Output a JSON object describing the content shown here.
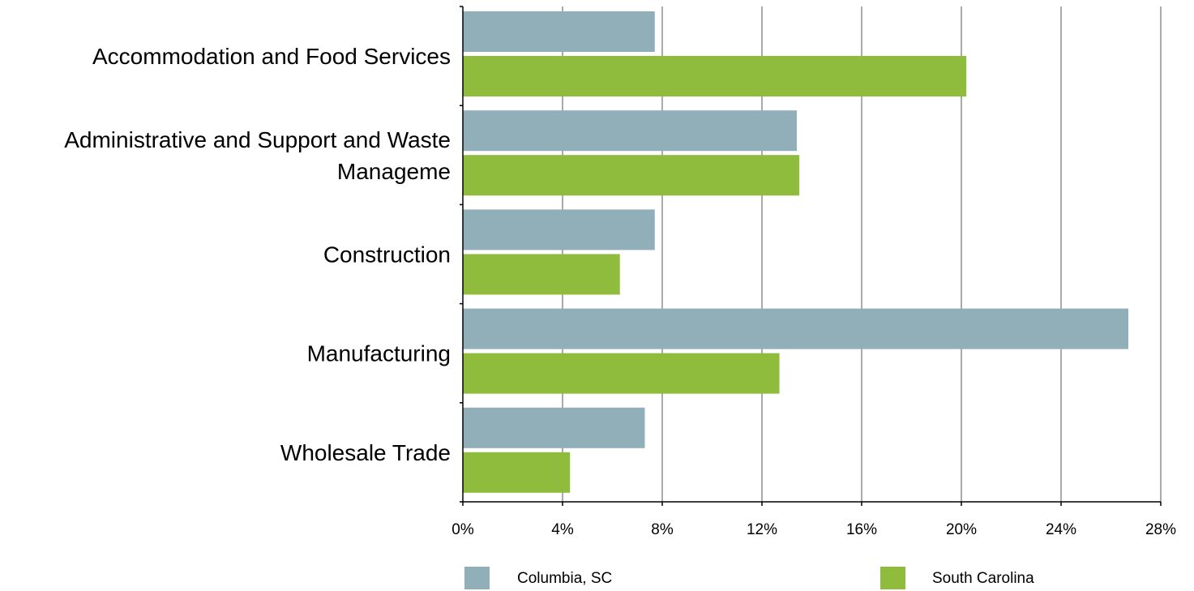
{
  "chart_data": {
    "type": "bar",
    "orientation": "horizontal",
    "categories": [
      [
        "Accommodation and Food Services"
      ],
      [
        "Administrative and Support and Waste",
        "Manageme"
      ],
      [
        "Construction"
      ],
      [
        "Manufacturing"
      ],
      [
        "Wholesale Trade"
      ]
    ],
    "series": [
      {
        "name": "Columbia, SC",
        "color": "#91afb8",
        "values": [
          7.7,
          13.4,
          7.7,
          26.7,
          7.3
        ]
      },
      {
        "name": "South Carolina",
        "color": "#8fbc3c",
        "values": [
          20.2,
          13.5,
          6.3,
          12.7,
          4.3
        ]
      }
    ],
    "xlim": [
      0,
      28
    ],
    "xticks": [
      0,
      4,
      8,
      12,
      16,
      20,
      24,
      28
    ],
    "tick_suffix": "%",
    "grid": "vertical",
    "legend_position": "bottom",
    "title": "",
    "xlabel": "",
    "ylabel": ""
  }
}
